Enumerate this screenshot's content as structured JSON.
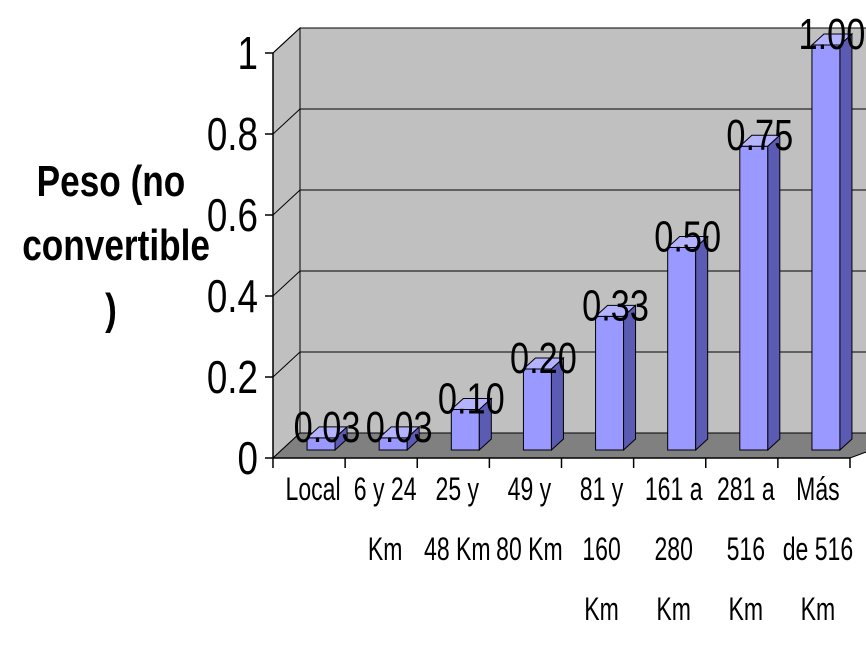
{
  "chart_data": {
    "type": "bar",
    "title": "",
    "xlabel": "",
    "ylabel_lines": [
      "Peso (no",
      "convertible",
      ")"
    ],
    "ylim": [
      0,
      1
    ],
    "yticks": [
      "0",
      "0.2",
      "0.4",
      "0.6",
      "0.8",
      "1"
    ],
    "grid": true,
    "categories": [
      [
        "Local"
      ],
      [
        "6 y 24",
        "Km"
      ],
      [
        "25 y",
        "48 Km"
      ],
      [
        "49 y",
        "80 Km"
      ],
      [
        "81 y",
        "160",
        "Km"
      ],
      [
        "161 a",
        "280",
        "Km"
      ],
      [
        "281 a",
        "516",
        "Km"
      ],
      [
        "Más",
        "de 516",
        "Km"
      ]
    ],
    "values": [
      0.03,
      0.03,
      0.1,
      0.2,
      0.33,
      0.5,
      0.75,
      1.0
    ],
    "value_labels": [
      "0.03",
      "0.03",
      "0.10",
      "0.20",
      "0.33",
      "0.50",
      "0.75",
      "1.00"
    ],
    "bar_color": "#9999ff",
    "wall_color": "#c0c0c0",
    "floor_color": "#808080"
  }
}
